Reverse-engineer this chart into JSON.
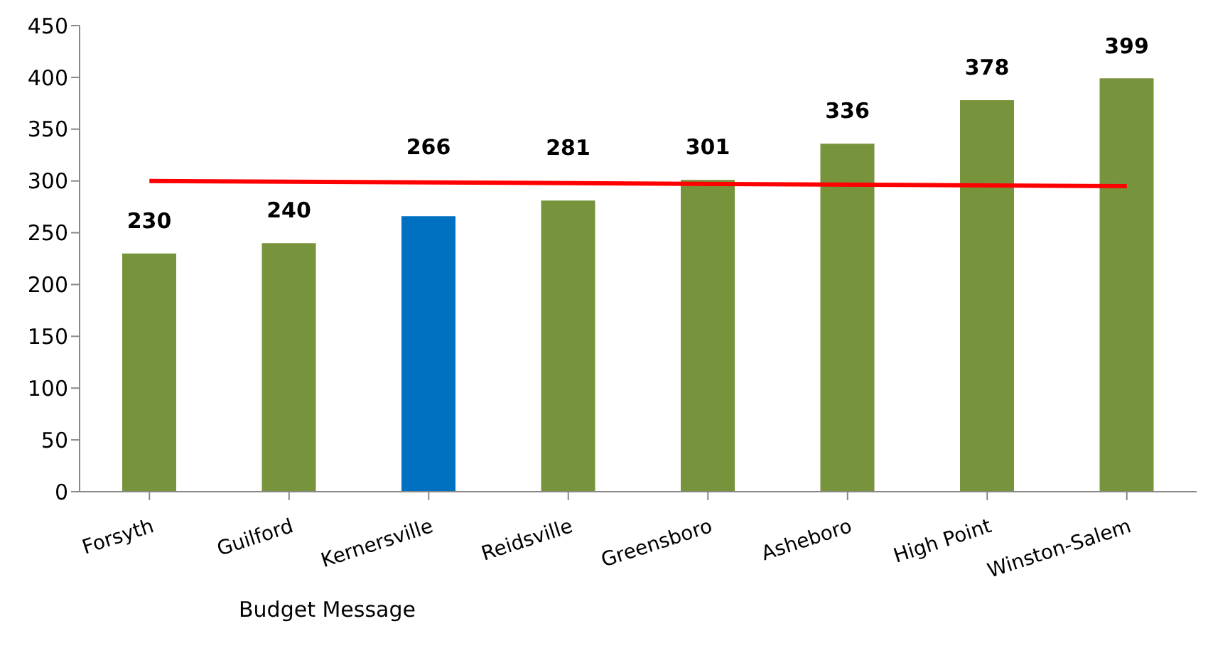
{
  "chart_data": {
    "type": "bar",
    "categories": [
      "Forsyth",
      "Guilford",
      "Kernersville",
      "Reidsville",
      "Greensboro",
      "Asheboro",
      "High Point",
      "Winston-Salem"
    ],
    "series": [
      {
        "values": [
          230,
          240,
          266,
          281,
          301,
          336,
          378,
          399
        ],
        "value_labels": [
          "230",
          "240",
          "266",
          "281",
          "301",
          "336",
          "378",
          "399"
        ],
        "colors": [
          "#77933c",
          "#77933c",
          "#0070c0",
          "#77933c",
          "#77933c",
          "#77933c",
          "#77933c",
          "#77933c"
        ]
      },
      {
        "type": "line",
        "color": "#ff0000",
        "values": [
          300,
          null,
          null,
          null,
          null,
          null,
          null,
          295
        ]
      }
    ],
    "ylim": [
      0,
      450
    ],
    "yticks": [
      0,
      50,
      100,
      150,
      200,
      250,
      300,
      350,
      400,
      450
    ],
    "grid": false,
    "legend": false,
    "marker": "none",
    "annotations": [
      "Budget Message"
    ]
  }
}
